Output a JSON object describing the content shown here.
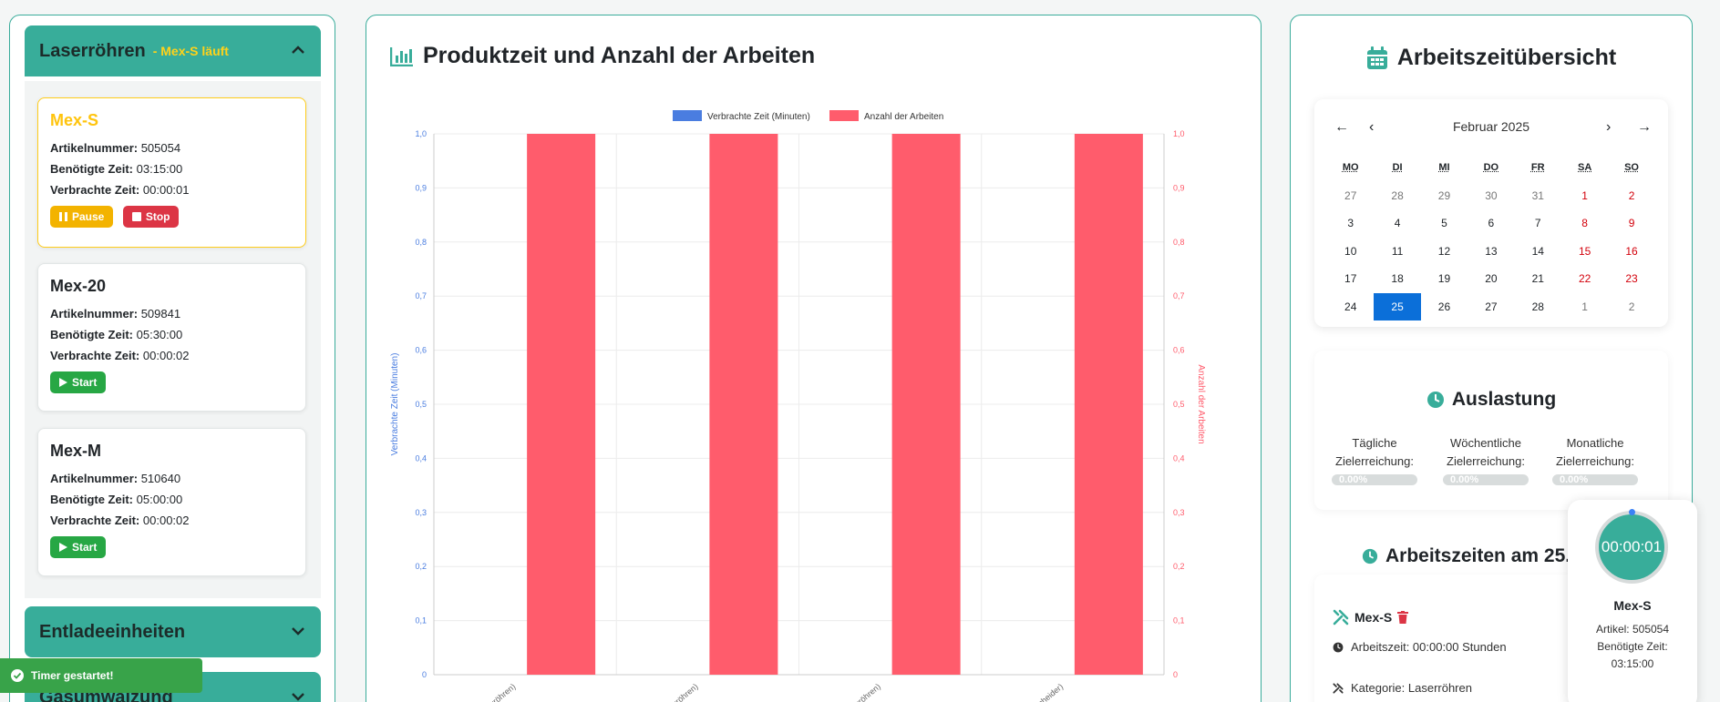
{
  "left_panel": {
    "sections": [
      {
        "title": "Laserröhren",
        "subtitle": "- Mex-S läuft"
      },
      {
        "title": "Entladeeinheiten"
      },
      {
        "title": "Gasumwälzung"
      }
    ],
    "products": [
      {
        "name": "Mex-S",
        "art_label": "Artikelnummer:",
        "art": "505054",
        "need_label": "Benötigte Zeit:",
        "need": "03:15:00",
        "spent_label": "Verbrachte Zeit:",
        "spent": "00:00:01"
      },
      {
        "name": "Mex-20",
        "art_label": "Artikelnummer:",
        "art": "509841",
        "need_label": "Benötigte Zeit:",
        "need": "05:30:00",
        "spent_label": "Verbrachte Zeit:",
        "spent": "00:00:02"
      },
      {
        "name": "Mex-M",
        "art_label": "Artikelnummer:",
        "art": "510640",
        "need_label": "Benötigte Zeit:",
        "need": "05:00:00",
        "spent_label": "Verbrachte Zeit:",
        "spent": "00:00:02"
      }
    ],
    "buttons": {
      "pause": "Pause",
      "stop": "Stop",
      "start": "Start"
    }
  },
  "chart_panel": {
    "title": "Produktzeit und Anzahl der Arbeiten"
  },
  "chart_data": {
    "type": "bar",
    "categories": [
      "…aserröhren)",
      "…aserröhren)",
      "…aserröhren)",
      "…atscheider)"
    ],
    "series": [
      {
        "name": "Verbrachte Zeit (Minuten)",
        "values": [
          0,
          0,
          0,
          0
        ],
        "color": "#4a7de0",
        "axis": "left"
      },
      {
        "name": "Anzahl der Arbeiten",
        "values": [
          1,
          1,
          1,
          1
        ],
        "color": "#ff5c6c",
        "axis": "right"
      }
    ],
    "ylabel": "Verbrachte Zeit (Minuten)",
    "y2label": "Anzahl der Arbeiten",
    "ylim": [
      0,
      1
    ],
    "y2lim": [
      0,
      1
    ],
    "yticks": [
      "0",
      "0,1",
      "0,2",
      "0,3",
      "0,4",
      "0,5",
      "0,6",
      "0,7",
      "0,8",
      "0,9",
      "1,0"
    ],
    "legend": "top",
    "grid": true
  },
  "right_panel": {
    "title": "Arbeitszeitübersicht",
    "calendar": {
      "month": "Februar 2025",
      "nav": {
        "prev_year": "←",
        "prev": "‹",
        "next": "›",
        "next_year": "→"
      },
      "dow": [
        "MO",
        "DI",
        "MI",
        "DO",
        "FR",
        "SA",
        "SO"
      ],
      "weeks": [
        [
          "27",
          "28",
          "29",
          "30",
          "31",
          "1",
          "2"
        ],
        [
          "3",
          "4",
          "5",
          "6",
          "7",
          "8",
          "9"
        ],
        [
          "10",
          "11",
          "12",
          "13",
          "14",
          "15",
          "16"
        ],
        [
          "17",
          "18",
          "19",
          "20",
          "21",
          "22",
          "23"
        ],
        [
          "24",
          "25",
          "26",
          "27",
          "28",
          "1",
          "2"
        ]
      ],
      "selected": "25"
    },
    "auslastung": {
      "title": "Auslastung",
      "items": [
        {
          "label_1": "Tägliche",
          "label_2": "Zielerreichung:",
          "value": "0.00%"
        },
        {
          "label_1": "Wöchentliche",
          "label_2": "Zielerreichung:",
          "value": "0.00%"
        },
        {
          "label_1": "Monatliche",
          "label_2": "Zielerreichung:",
          "value": "0.00%"
        }
      ]
    },
    "arbeitszeiten": {
      "title": "Arbeitszeiten am 25.2",
      "entry": {
        "name": "Mex-S",
        "time": "Arbeitszeit: 00:00:00 Stunden",
        "category": "Kategorie: Laserröhren"
      }
    }
  },
  "timer": {
    "time": "00:00:01",
    "name": "Mex-S",
    "article": "Artikel: 505054",
    "need_1": "Benötigte Zeit:",
    "need_2": "03:15:00"
  },
  "toast": {
    "text": "Timer gestartet!"
  }
}
